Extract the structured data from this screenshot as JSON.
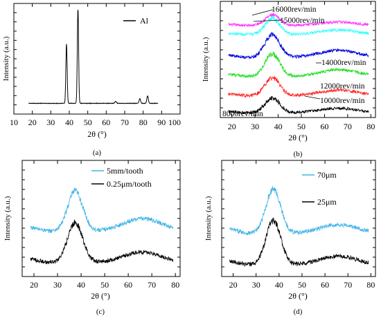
{
  "figure": {
    "panels": [
      {
        "id": "a",
        "caption": "(a)",
        "xlabel": "2θ (°)",
        "ylabel": "Intensity (a.u.)",
        "xticks": [
          "10",
          "20",
          "30",
          "40",
          "50",
          "60",
          "70",
          "80",
          "90",
          "100"
        ],
        "legend": [
          {
            "label": "Al",
            "color": "#000000"
          }
        ]
      },
      {
        "id": "b",
        "caption": "(b)",
        "xlabel": "2θ (°)",
        "ylabel": "Intensity (a.u.)",
        "xticks": [
          "20",
          "30",
          "40",
          "50",
          "60",
          "70",
          "80"
        ],
        "labels": [
          "16000rev/min",
          "15000rev/min",
          "14000rev/min",
          "12000rev/min",
          "10000rev/min",
          "8000rev/min"
        ]
      },
      {
        "id": "c",
        "caption": "(c)",
        "xlabel": "2θ (°)",
        "ylabel": "Intensity (a.u.)",
        "xticks": [
          "20",
          "30",
          "40",
          "50",
          "60",
          "70",
          "80"
        ],
        "legend": [
          {
            "label": "5mm/tooth",
            "color": "#3fb3e6"
          },
          {
            "label": "0.25μm/tooth",
            "color": "#000000"
          }
        ]
      },
      {
        "id": "d",
        "caption": "(d)",
        "xlabel": "2θ (°)",
        "ylabel": "Intensity (a.u.)",
        "xticks": [
          "20",
          "30",
          "40",
          "50",
          "60",
          "70",
          "80"
        ],
        "legend": [
          {
            "label": "70μm",
            "color": "#3fb3e6"
          },
          {
            "label": "25μm",
            "color": "#000000"
          }
        ]
      }
    ]
  },
  "chart_data": [
    {
      "type": "line",
      "panel": "a",
      "xlabel": "2θ (°)",
      "ylabel": "Intensity (a.u.)",
      "xlim": [
        10,
        100
      ],
      "series": [
        {
          "name": "Al",
          "color": "#000000",
          "baseline": 0.04,
          "peaks": [
            {
              "x": 38.5,
              "height": 0.62,
              "width": 0.35
            },
            {
              "x": 44.7,
              "height": 1.0,
              "width": 0.35
            },
            {
              "x": 65.1,
              "height": 0.02,
              "width": 0.4
            },
            {
              "x": 78.2,
              "height": 0.05,
              "width": 0.4
            },
            {
              "x": 82.4,
              "height": 0.08,
              "width": 0.4
            }
          ]
        }
      ]
    },
    {
      "type": "line",
      "panel": "b",
      "xlabel": "2θ (°)",
      "ylabel": "Intensity (a.u.)",
      "xlim": [
        15,
        82
      ],
      "series": [
        {
          "name": "16000rev/min",
          "color": "#ff33ff",
          "offset": 0.8,
          "peak_height": 0.09,
          "hump_height": 0.03,
          "noise": 0.012
        },
        {
          "name": "15000rev/min",
          "color": "#33ffff",
          "offset": 0.72,
          "peak_height": 0.14,
          "hump_height": 0.04,
          "noise": 0.013
        },
        {
          "name": "14000rev/min",
          "color": "#0000e0",
          "offset": 0.52,
          "peak_height": 0.2,
          "hump_height": 0.06,
          "noise": 0.014
        },
        {
          "name": "12000rev/min",
          "color": "#22dd22",
          "offset": 0.35,
          "peak_height": 0.2,
          "hump_height": 0.06,
          "noise": 0.014
        },
        {
          "name": "10000rev/min",
          "color": "#ff2222",
          "offset": 0.18,
          "peak_height": 0.16,
          "hump_height": 0.05,
          "noise": 0.014
        },
        {
          "name": "8000rev/min",
          "color": "#000000",
          "offset": 0.03,
          "peak_height": 0.13,
          "hump_height": 0.04,
          "noise": 0.013
        }
      ]
    },
    {
      "type": "line",
      "panel": "c",
      "xlabel": "2θ (°)",
      "ylabel": "Intensity (a.u.)",
      "xlim": [
        15,
        82
      ],
      "series": [
        {
          "name": "5mm/tooth",
          "color": "#3fb3e6",
          "offset": 0.38,
          "peak_height": 0.38,
          "hump_height": 0.12,
          "noise": 0.02
        },
        {
          "name": "0.25μm/tooth",
          "color": "#000000",
          "offset": 0.08,
          "peak_height": 0.38,
          "hump_height": 0.1,
          "noise": 0.02
        }
      ]
    },
    {
      "type": "line",
      "panel": "d",
      "xlabel": "2θ (°)",
      "ylabel": "Intensity (a.u.)",
      "xlim": [
        15,
        82
      ],
      "series": [
        {
          "name": "70μm",
          "color": "#3fb3e6",
          "offset": 0.36,
          "peak_height": 0.42,
          "hump_height": 0.08,
          "noise": 0.02
        },
        {
          "name": "25μm",
          "color": "#000000",
          "offset": 0.06,
          "peak_height": 0.42,
          "hump_height": 0.08,
          "noise": 0.02
        }
      ]
    }
  ]
}
